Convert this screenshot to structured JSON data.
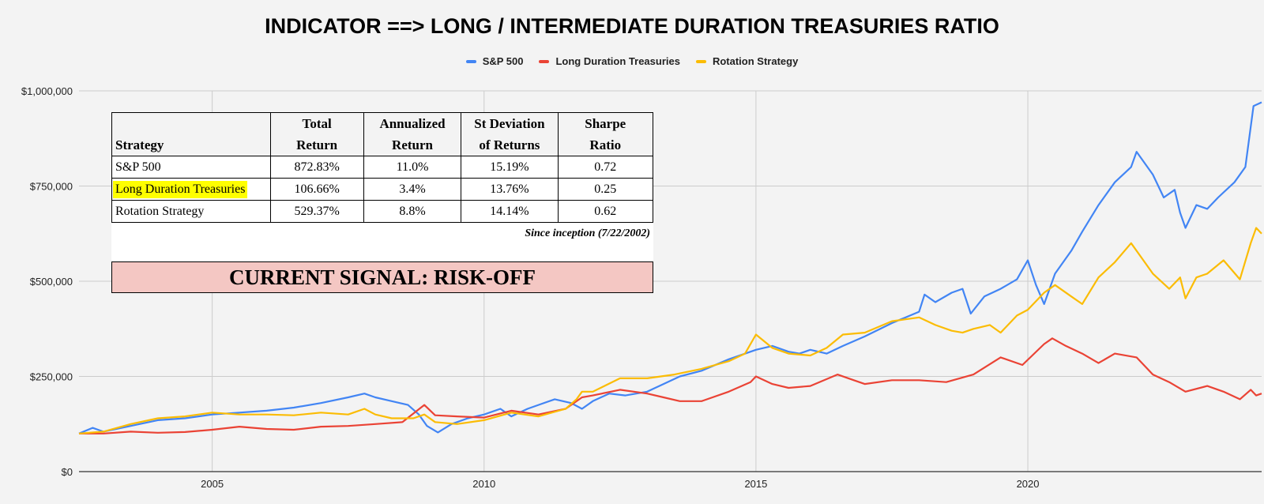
{
  "chart_data": {
    "type": "line",
    "title": "INDICATOR ==> LONG / INTERMEDIATE DURATION TREASURIES RATIO",
    "xlim": [
      2002.55,
      2024.3
    ],
    "ylim": [
      0,
      1000000
    ],
    "y_ticks": [
      0,
      250000,
      500000,
      750000,
      1000000
    ],
    "y_tick_labels": [
      "$0",
      "$250,000",
      "$500,000",
      "$750,000",
      "$1,000,000"
    ],
    "x_ticks": [
      2005,
      2010,
      2015,
      2020
    ],
    "x_tick_labels": [
      "2005",
      "2010",
      "2015",
      "2020"
    ],
    "grid": true,
    "legend_position": "top",
    "series": [
      {
        "name": "S&P 500",
        "color": "#4285f4",
        "points": [
          [
            2002.55,
            100000
          ],
          [
            2002.8,
            115000
          ],
          [
            2003.0,
            105000
          ],
          [
            2003.5,
            120000
          ],
          [
            2004.0,
            135000
          ],
          [
            2004.5,
            140000
          ],
          [
            2005.0,
            150000
          ],
          [
            2005.5,
            155000
          ],
          [
            2006.0,
            160000
          ],
          [
            2006.5,
            168000
          ],
          [
            2007.0,
            180000
          ],
          [
            2007.5,
            195000
          ],
          [
            2007.8,
            205000
          ],
          [
            2008.0,
            195000
          ],
          [
            2008.3,
            185000
          ],
          [
            2008.6,
            175000
          ],
          [
            2008.8,
            150000
          ],
          [
            2008.95,
            120000
          ],
          [
            2009.15,
            103000
          ],
          [
            2009.4,
            125000
          ],
          [
            2009.7,
            140000
          ],
          [
            2010.0,
            150000
          ],
          [
            2010.3,
            165000
          ],
          [
            2010.5,
            145000
          ],
          [
            2010.8,
            165000
          ],
          [
            2011.0,
            175000
          ],
          [
            2011.3,
            190000
          ],
          [
            2011.6,
            180000
          ],
          [
            2011.8,
            165000
          ],
          [
            2012.0,
            185000
          ],
          [
            2012.3,
            205000
          ],
          [
            2012.6,
            200000
          ],
          [
            2013.0,
            210000
          ],
          [
            2013.3,
            230000
          ],
          [
            2013.6,
            250000
          ],
          [
            2014.0,
            265000
          ],
          [
            2014.5,
            295000
          ],
          [
            2015.0,
            320000
          ],
          [
            2015.3,
            330000
          ],
          [
            2015.6,
            315000
          ],
          [
            2015.8,
            310000
          ],
          [
            2016.0,
            320000
          ],
          [
            2016.3,
            310000
          ],
          [
            2016.6,
            330000
          ],
          [
            2017.0,
            355000
          ],
          [
            2017.5,
            390000
          ],
          [
            2018.0,
            420000
          ],
          [
            2018.1,
            465000
          ],
          [
            2018.3,
            445000
          ],
          [
            2018.6,
            470000
          ],
          [
            2018.8,
            480000
          ],
          [
            2018.95,
            415000
          ],
          [
            2019.2,
            460000
          ],
          [
            2019.5,
            480000
          ],
          [
            2019.8,
            505000
          ],
          [
            2020.0,
            555000
          ],
          [
            2020.15,
            490000
          ],
          [
            2020.3,
            440000
          ],
          [
            2020.5,
            520000
          ],
          [
            2020.8,
            580000
          ],
          [
            2021.0,
            630000
          ],
          [
            2021.3,
            700000
          ],
          [
            2021.6,
            760000
          ],
          [
            2021.9,
            800000
          ],
          [
            2022.0,
            840000
          ],
          [
            2022.3,
            780000
          ],
          [
            2022.5,
            720000
          ],
          [
            2022.7,
            740000
          ],
          [
            2022.8,
            680000
          ],
          [
            2022.9,
            640000
          ],
          [
            2023.1,
            700000
          ],
          [
            2023.3,
            690000
          ],
          [
            2023.5,
            720000
          ],
          [
            2023.8,
            760000
          ],
          [
            2024.0,
            800000
          ],
          [
            2024.15,
            960000
          ],
          [
            2024.3,
            970000
          ]
        ]
      },
      {
        "name": "Long Duration Treasuries",
        "color": "#ea4335",
        "points": [
          [
            2002.55,
            100000
          ],
          [
            2003.0,
            100000
          ],
          [
            2003.5,
            105000
          ],
          [
            2004.0,
            102000
          ],
          [
            2004.5,
            104000
          ],
          [
            2005.0,
            110000
          ],
          [
            2005.5,
            118000
          ],
          [
            2006.0,
            112000
          ],
          [
            2006.5,
            110000
          ],
          [
            2007.0,
            118000
          ],
          [
            2007.5,
            120000
          ],
          [
            2008.0,
            125000
          ],
          [
            2008.5,
            130000
          ],
          [
            2008.9,
            175000
          ],
          [
            2009.1,
            148000
          ],
          [
            2009.5,
            145000
          ],
          [
            2010.0,
            142000
          ],
          [
            2010.5,
            160000
          ],
          [
            2011.0,
            150000
          ],
          [
            2011.5,
            165000
          ],
          [
            2011.8,
            195000
          ],
          [
            2012.0,
            200000
          ],
          [
            2012.5,
            215000
          ],
          [
            2013.0,
            205000
          ],
          [
            2013.3,
            195000
          ],
          [
            2013.6,
            185000
          ],
          [
            2014.0,
            185000
          ],
          [
            2014.5,
            210000
          ],
          [
            2014.9,
            235000
          ],
          [
            2015.0,
            250000
          ],
          [
            2015.3,
            230000
          ],
          [
            2015.6,
            220000
          ],
          [
            2016.0,
            225000
          ],
          [
            2016.5,
            255000
          ],
          [
            2016.8,
            240000
          ],
          [
            2017.0,
            230000
          ],
          [
            2017.5,
            240000
          ],
          [
            2018.0,
            240000
          ],
          [
            2018.5,
            235000
          ],
          [
            2019.0,
            255000
          ],
          [
            2019.5,
            300000
          ],
          [
            2019.9,
            280000
          ],
          [
            2020.3,
            335000
          ],
          [
            2020.45,
            350000
          ],
          [
            2020.7,
            330000
          ],
          [
            2021.0,
            310000
          ],
          [
            2021.3,
            285000
          ],
          [
            2021.6,
            310000
          ],
          [
            2022.0,
            300000
          ],
          [
            2022.3,
            255000
          ],
          [
            2022.6,
            235000
          ],
          [
            2022.9,
            210000
          ],
          [
            2023.3,
            225000
          ],
          [
            2023.6,
            210000
          ],
          [
            2023.9,
            190000
          ],
          [
            2024.1,
            215000
          ],
          [
            2024.2,
            200000
          ],
          [
            2024.3,
            205000
          ]
        ]
      },
      {
        "name": "Rotation Strategy",
        "color": "#fbbc04",
        "points": [
          [
            2002.55,
            100000
          ],
          [
            2003.0,
            105000
          ],
          [
            2003.5,
            125000
          ],
          [
            2004.0,
            140000
          ],
          [
            2004.5,
            145000
          ],
          [
            2005.0,
            155000
          ],
          [
            2005.5,
            150000
          ],
          [
            2006.0,
            150000
          ],
          [
            2006.5,
            148000
          ],
          [
            2007.0,
            155000
          ],
          [
            2007.5,
            150000
          ],
          [
            2007.8,
            165000
          ],
          [
            2008.0,
            150000
          ],
          [
            2008.3,
            140000
          ],
          [
            2008.7,
            140000
          ],
          [
            2008.9,
            150000
          ],
          [
            2009.1,
            130000
          ],
          [
            2009.5,
            125000
          ],
          [
            2010.0,
            135000
          ],
          [
            2010.5,
            155000
          ],
          [
            2011.0,
            145000
          ],
          [
            2011.5,
            165000
          ],
          [
            2011.7,
            190000
          ],
          [
            2011.8,
            210000
          ],
          [
            2012.0,
            210000
          ],
          [
            2012.5,
            245000
          ],
          [
            2013.0,
            245000
          ],
          [
            2013.5,
            255000
          ],
          [
            2014.0,
            270000
          ],
          [
            2014.5,
            290000
          ],
          [
            2014.8,
            310000
          ],
          [
            2015.0,
            360000
          ],
          [
            2015.3,
            325000
          ],
          [
            2015.6,
            310000
          ],
          [
            2016.0,
            305000
          ],
          [
            2016.3,
            325000
          ],
          [
            2016.6,
            360000
          ],
          [
            2017.0,
            365000
          ],
          [
            2017.5,
            395000
          ],
          [
            2018.0,
            405000
          ],
          [
            2018.3,
            385000
          ],
          [
            2018.6,
            370000
          ],
          [
            2018.8,
            365000
          ],
          [
            2019.0,
            375000
          ],
          [
            2019.3,
            385000
          ],
          [
            2019.5,
            365000
          ],
          [
            2019.8,
            410000
          ],
          [
            2020.0,
            425000
          ],
          [
            2020.3,
            470000
          ],
          [
            2020.5,
            490000
          ],
          [
            2020.8,
            460000
          ],
          [
            2021.0,
            440000
          ],
          [
            2021.3,
            510000
          ],
          [
            2021.6,
            550000
          ],
          [
            2021.9,
            600000
          ],
          [
            2022.1,
            560000
          ],
          [
            2022.3,
            520000
          ],
          [
            2022.6,
            480000
          ],
          [
            2022.8,
            510000
          ],
          [
            2022.9,
            455000
          ],
          [
            2023.1,
            510000
          ],
          [
            2023.3,
            520000
          ],
          [
            2023.6,
            555000
          ],
          [
            2023.9,
            505000
          ],
          [
            2024.1,
            600000
          ],
          [
            2024.2,
            640000
          ],
          [
            2024.3,
            625000
          ]
        ]
      }
    ]
  },
  "legend": {
    "items": [
      {
        "label": "S&P 500",
        "color": "#4285f4"
      },
      {
        "label": "Long Duration Treasuries",
        "color": "#ea4335"
      },
      {
        "label": "Rotation Strategy",
        "color": "#fbbc04"
      }
    ]
  },
  "stats_table": {
    "headers": [
      {
        "line1": "",
        "line2": "Strategy"
      },
      {
        "line1": "Total",
        "line2": "Return"
      },
      {
        "line1": "Annualized",
        "line2": "Return"
      },
      {
        "line1": "St Deviation",
        "line2": "of Returns"
      },
      {
        "line1": "Sharpe",
        "line2": "Ratio"
      }
    ],
    "rows": [
      {
        "name": "S&P 500",
        "total_return": "872.83%",
        "annualized_return": "11.0%",
        "st_dev": "15.19%",
        "sharpe": "0.72",
        "highlight": false
      },
      {
        "name": "Long Duration Treasuries",
        "total_return": "106.66%",
        "annualized_return": "3.4%",
        "st_dev": "13.76%",
        "sharpe": "0.25",
        "highlight": true
      },
      {
        "name": "Rotation Strategy",
        "total_return": "529.37%",
        "annualized_return": "8.8%",
        "st_dev": "14.14%",
        "sharpe": "0.62",
        "highlight": false
      }
    ],
    "highlight_color": "#ffff00",
    "note": "Since inception (7/22/2002)"
  },
  "signal": {
    "text": "CURRENT SIGNAL: RISK-OFF",
    "background": "#f4c7c3"
  }
}
